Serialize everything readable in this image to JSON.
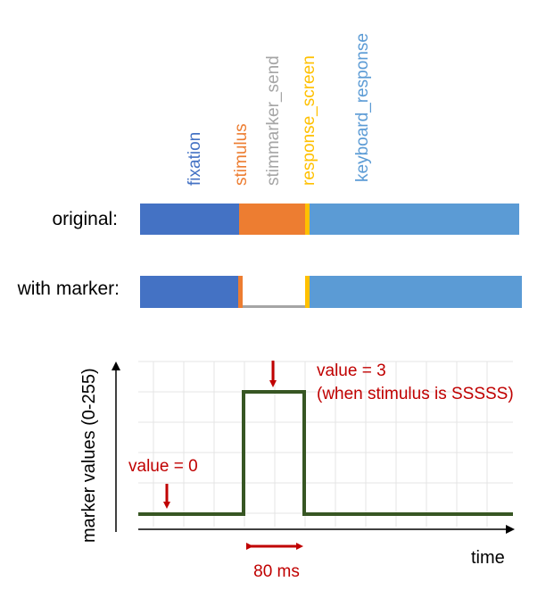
{
  "phases": [
    {
      "key": "fixation",
      "label": "fixation",
      "color": "#4472c4"
    },
    {
      "key": "stimulus",
      "label": "stimulus",
      "color": "#ed7d31"
    },
    {
      "key": "stimmarker_send",
      "label": "stimmarker_send",
      "color": "#a5a5a5"
    },
    {
      "key": "response_screen",
      "label": "response_screen",
      "color": "#ffc000"
    },
    {
      "key": "keyboard_response",
      "label": "keyboard_response",
      "color": "#5b9bd5"
    }
  ],
  "rows": {
    "original": "original:",
    "with_marker": "with marker:"
  },
  "plot": {
    "ylabel": "marker values (0-255)",
    "xlabel": "time",
    "low_label": "value = 0",
    "high_label_1": "value = 3",
    "high_label_2": "(when stimulus is SSSSS)",
    "duration_label": "80 ms",
    "line_color": "#375623",
    "annotation_color": "#c00000"
  }
}
